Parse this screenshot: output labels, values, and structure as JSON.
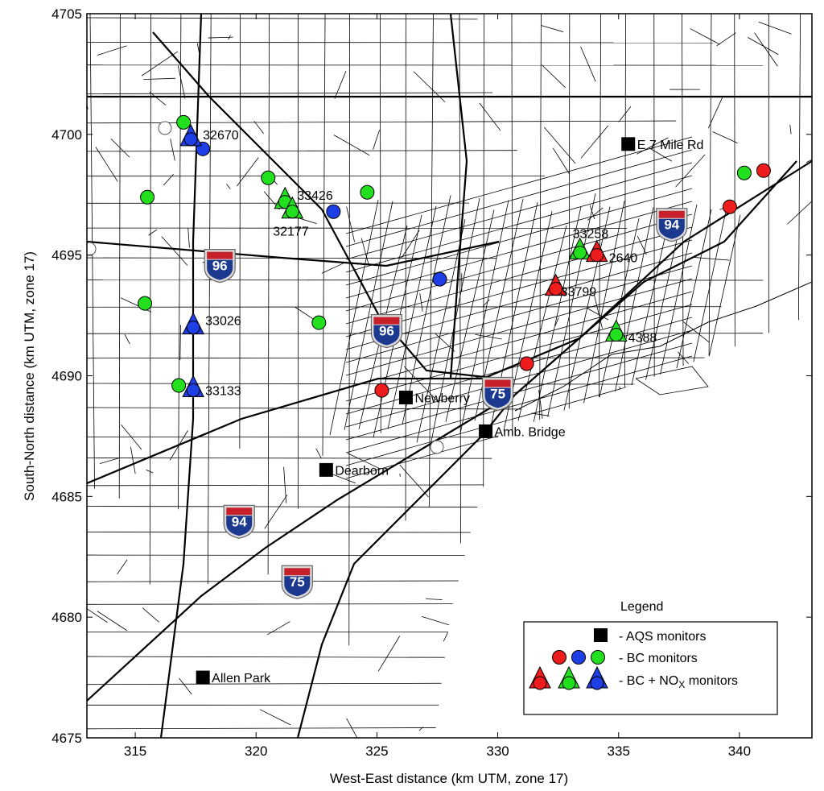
{
  "axes": {
    "xlabel": "West-East distance (km UTM, zone 17)",
    "ylabel": "South-North distance (km UTM, zone 17)",
    "xlim": [
      313,
      343
    ],
    "ylim": [
      4675,
      4705
    ],
    "xticks": [
      "315",
      "320",
      "325",
      "330",
      "335",
      "340"
    ],
    "yticks": [
      "4675",
      "4680",
      "4685",
      "4690",
      "4695",
      "4700",
      "4705"
    ]
  },
  "aqs_monitors": [
    {
      "name": "E 7 Mile Rd",
      "x": 335.4,
      "y": 4699.6
    },
    {
      "name": "Newberry",
      "x": 326.2,
      "y": 4689.1
    },
    {
      "name": "Amb. Bridge",
      "x": 329.5,
      "y": 4687.7
    },
    {
      "name": "Dearborn",
      "x": 322.9,
      "y": 4686.1
    },
    {
      "name": "Allen Park",
      "x": 317.8,
      "y": 4677.5
    }
  ],
  "bc_monitors": [
    {
      "color": "green",
      "x": 317.0,
      "y": 4700.5
    },
    {
      "color": "blue",
      "x": 317.8,
      "y": 4699.4
    },
    {
      "color": "green",
      "x": 315.5,
      "y": 4697.4
    },
    {
      "color": "green",
      "x": 320.5,
      "y": 4698.2
    },
    {
      "color": "green",
      "x": 324.6,
      "y": 4697.6
    },
    {
      "color": "blue",
      "x": 323.2,
      "y": 4696.8
    },
    {
      "color": "green",
      "x": 315.4,
      "y": 4693.0
    },
    {
      "color": "green",
      "x": 322.6,
      "y": 4692.2
    },
    {
      "color": "blue",
      "x": 327.6,
      "y": 4694.0
    },
    {
      "color": "green",
      "x": 316.8,
      "y": 4689.6
    },
    {
      "color": "red",
      "x": 325.2,
      "y": 4689.4
    },
    {
      "color": "red",
      "x": 331.2,
      "y": 4690.5
    },
    {
      "color": "red",
      "x": 339.6,
      "y": 4697.0
    },
    {
      "color": "green",
      "x": 340.2,
      "y": 4698.4
    },
    {
      "color": "red",
      "x": 341.0,
      "y": 4698.5
    }
  ],
  "bc_nox_monitors": [
    {
      "id": "32670",
      "color": "blue",
      "x": 317.3,
      "y": 4699.8
    },
    {
      "id": "33426",
      "color": "green",
      "x": 321.2,
      "y": 4697.2
    },
    {
      "id": "32177",
      "color": "green",
      "x": 321.5,
      "y": 4696.8
    },
    {
      "id": "33258",
      "color": "green",
      "x": 333.4,
      "y": 4695.1
    },
    {
      "id": "2640",
      "color": "red",
      "x": 334.1,
      "y": 4695.0
    },
    {
      "id": "33799",
      "color": "red",
      "x": 332.4,
      "y": 4693.6
    },
    {
      "id": "4388",
      "color": "green",
      "x": 334.9,
      "y": 4691.7
    },
    {
      "id": "33026",
      "color": "blue",
      "x": 317.4,
      "y": 4692.0
    },
    {
      "id": "33133",
      "color": "blue",
      "x": 317.4,
      "y": 4689.4
    }
  ],
  "site_labels": [
    {
      "text": "32670",
      "x": 317.8,
      "y": 4700.0
    },
    {
      "text": "33426",
      "x": 321.7,
      "y": 4697.5
    },
    {
      "text": "32177",
      "x": 320.7,
      "y": 4696.0
    },
    {
      "text": "33258",
      "x": 333.1,
      "y": 4695.9
    },
    {
      "text": "2640",
      "x": 334.6,
      "y": 4694.9
    },
    {
      "text": "33799",
      "x": 332.6,
      "y": 4693.5
    },
    {
      "text": "4388",
      "x": 335.4,
      "y": 4691.6
    },
    {
      "text": "33026",
      "x": 317.9,
      "y": 4692.3
    },
    {
      "text": "33133",
      "x": 317.9,
      "y": 4689.4
    }
  ],
  "interstates": [
    {
      "number": "96",
      "x": 318.5,
      "y": 4694.6
    },
    {
      "number": "96",
      "x": 325.4,
      "y": 4691.9
    },
    {
      "number": "75",
      "x": 330.0,
      "y": 4689.3
    },
    {
      "number": "94",
      "x": 337.2,
      "y": 4696.3
    },
    {
      "number": "94",
      "x": 319.3,
      "y": 4684.0
    },
    {
      "number": "75",
      "x": 321.7,
      "y": 4681.5
    }
  ],
  "colors": {
    "red": "#ee1c1c",
    "green": "#22e01e",
    "blue": "#1e3ee6",
    "black": "#000000",
    "shield_blue": "#1b3a8f",
    "shield_red": "#c8202a"
  },
  "legend": {
    "title": "Legend",
    "items": [
      {
        "label": "- AQS monitors"
      },
      {
        "label": "- BC monitors"
      },
      {
        "label_prefix": "- BC + NO",
        "label_sub": "X",
        "label_suffix": " monitors"
      }
    ]
  }
}
